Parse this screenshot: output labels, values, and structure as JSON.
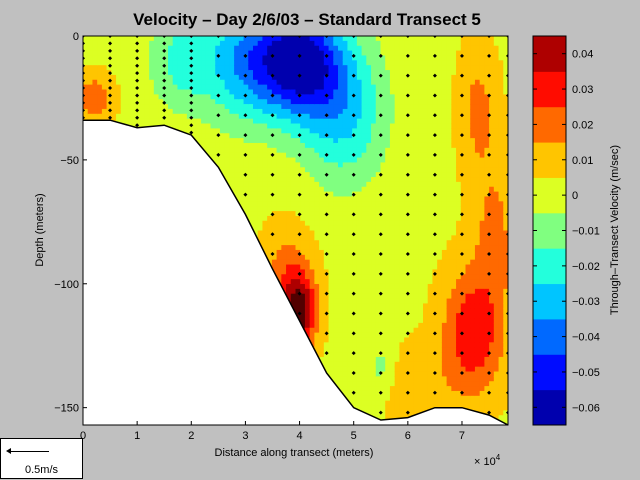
{
  "chart_data": {
    "type": "heatmap",
    "title": "Velocity – Day 2/6/03 – Standard Transect 5",
    "xlabel": "Distance along transect (meters)",
    "ylabel": "Depth (meters)",
    "x_exponent_label": "× 10",
    "x_exponent_power": "4",
    "colorbar_label": "Through–Transect Velocity (m/sec)",
    "xlim": [
      0,
      7.85
    ],
    "ylim": [
      -157,
      0
    ],
    "x_ticks": [
      0,
      1,
      2,
      3,
      4,
      5,
      6,
      7
    ],
    "x_tick_labels": [
      "0",
      "1",
      "2",
      "3",
      "4",
      "5",
      "6",
      "7"
    ],
    "y_ticks": [
      0,
      -50,
      -100,
      -150
    ],
    "y_tick_labels": [
      "0",
      "−50",
      "−100",
      "−150"
    ],
    "clim": [
      -0.065,
      0.045
    ],
    "colorbar_ticks": [
      0.04,
      0.03,
      0.02,
      0.01,
      0,
      -0.01,
      -0.02,
      -0.03,
      -0.04,
      -0.05,
      -0.06
    ],
    "colorbar_tick_labels": [
      "0.04",
      "0.03",
      "0.02",
      "0.01",
      "0",
      "−0.01",
      "−0.02",
      "−0.03",
      "−0.04",
      "−0.05",
      "−0.06"
    ],
    "bottom_profile": [
      {
        "x": 0,
        "depth": -34
      },
      {
        "x": 0.5,
        "depth": -34
      },
      {
        "x": 1,
        "depth": -37
      },
      {
        "x": 1.5,
        "depth": -36
      },
      {
        "x": 2,
        "depth": -40
      },
      {
        "x": 2.5,
        "depth": -53
      },
      {
        "x": 3,
        "depth": -72
      },
      {
        "x": 3.5,
        "depth": -94
      },
      {
        "x": 4,
        "depth": -115
      },
      {
        "x": 4.5,
        "depth": -136
      },
      {
        "x": 5,
        "depth": -150
      },
      {
        "x": 5.5,
        "depth": -155
      },
      {
        "x": 6,
        "depth": -154
      },
      {
        "x": 6.5,
        "depth": -150
      },
      {
        "x": 7,
        "depth": -150
      },
      {
        "x": 7.5,
        "depth": -153
      },
      {
        "x": 7.85,
        "depth": -157
      }
    ],
    "velocity_features": [
      {
        "x": 4.0,
        "depth": -10,
        "value": -0.06,
        "sx": 0.75,
        "sy": 22
      },
      {
        "x": 3.0,
        "depth": -10,
        "value": -0.035,
        "sx": 0.8,
        "sy": 25
      },
      {
        "x": 4.8,
        "depth": -30,
        "value": -0.03,
        "sx": 0.8,
        "sy": 30
      },
      {
        "x": 1.8,
        "depth": -10,
        "value": -0.02,
        "sx": 0.6,
        "sy": 20
      },
      {
        "x": 0.2,
        "depth": -25,
        "value": 0.02,
        "sx": 0.35,
        "sy": 9
      },
      {
        "x": 4.0,
        "depth": -112,
        "value": 0.04,
        "sx": 0.3,
        "sy": 14
      },
      {
        "x": 3.8,
        "depth": -100,
        "value": 0.02,
        "sx": 0.45,
        "sy": 22
      },
      {
        "x": 7.2,
        "depth": -120,
        "value": 0.03,
        "sx": 0.55,
        "sy": 25
      },
      {
        "x": 7.6,
        "depth": -80,
        "value": 0.015,
        "sx": 0.4,
        "sy": 30
      },
      {
        "x": 7.3,
        "depth": -30,
        "value": 0.015,
        "sx": 0.35,
        "sy": 25
      },
      {
        "x": 5.5,
        "depth": -135,
        "value": -0.015,
        "sx": 0.3,
        "sy": 12
      },
      {
        "x": 6.0,
        "depth": -140,
        "value": 0.01,
        "sx": 0.8,
        "sy": 15
      }
    ],
    "sample_stations_x": [
      0,
      0.5,
      1,
      1.5,
      2,
      2.5,
      3,
      3.5,
      4,
      4.5,
      5,
      5.5,
      6,
      6.5,
      7,
      7.5,
      7.85
    ],
    "colormap": [
      "#000080",
      "#0000ff",
      "#0080ff",
      "#00ffff",
      "#80ff80",
      "#ffff00",
      "#ff8000",
      "#ff0000",
      "#800000"
    ]
  },
  "scale_label": "0.5m/s"
}
